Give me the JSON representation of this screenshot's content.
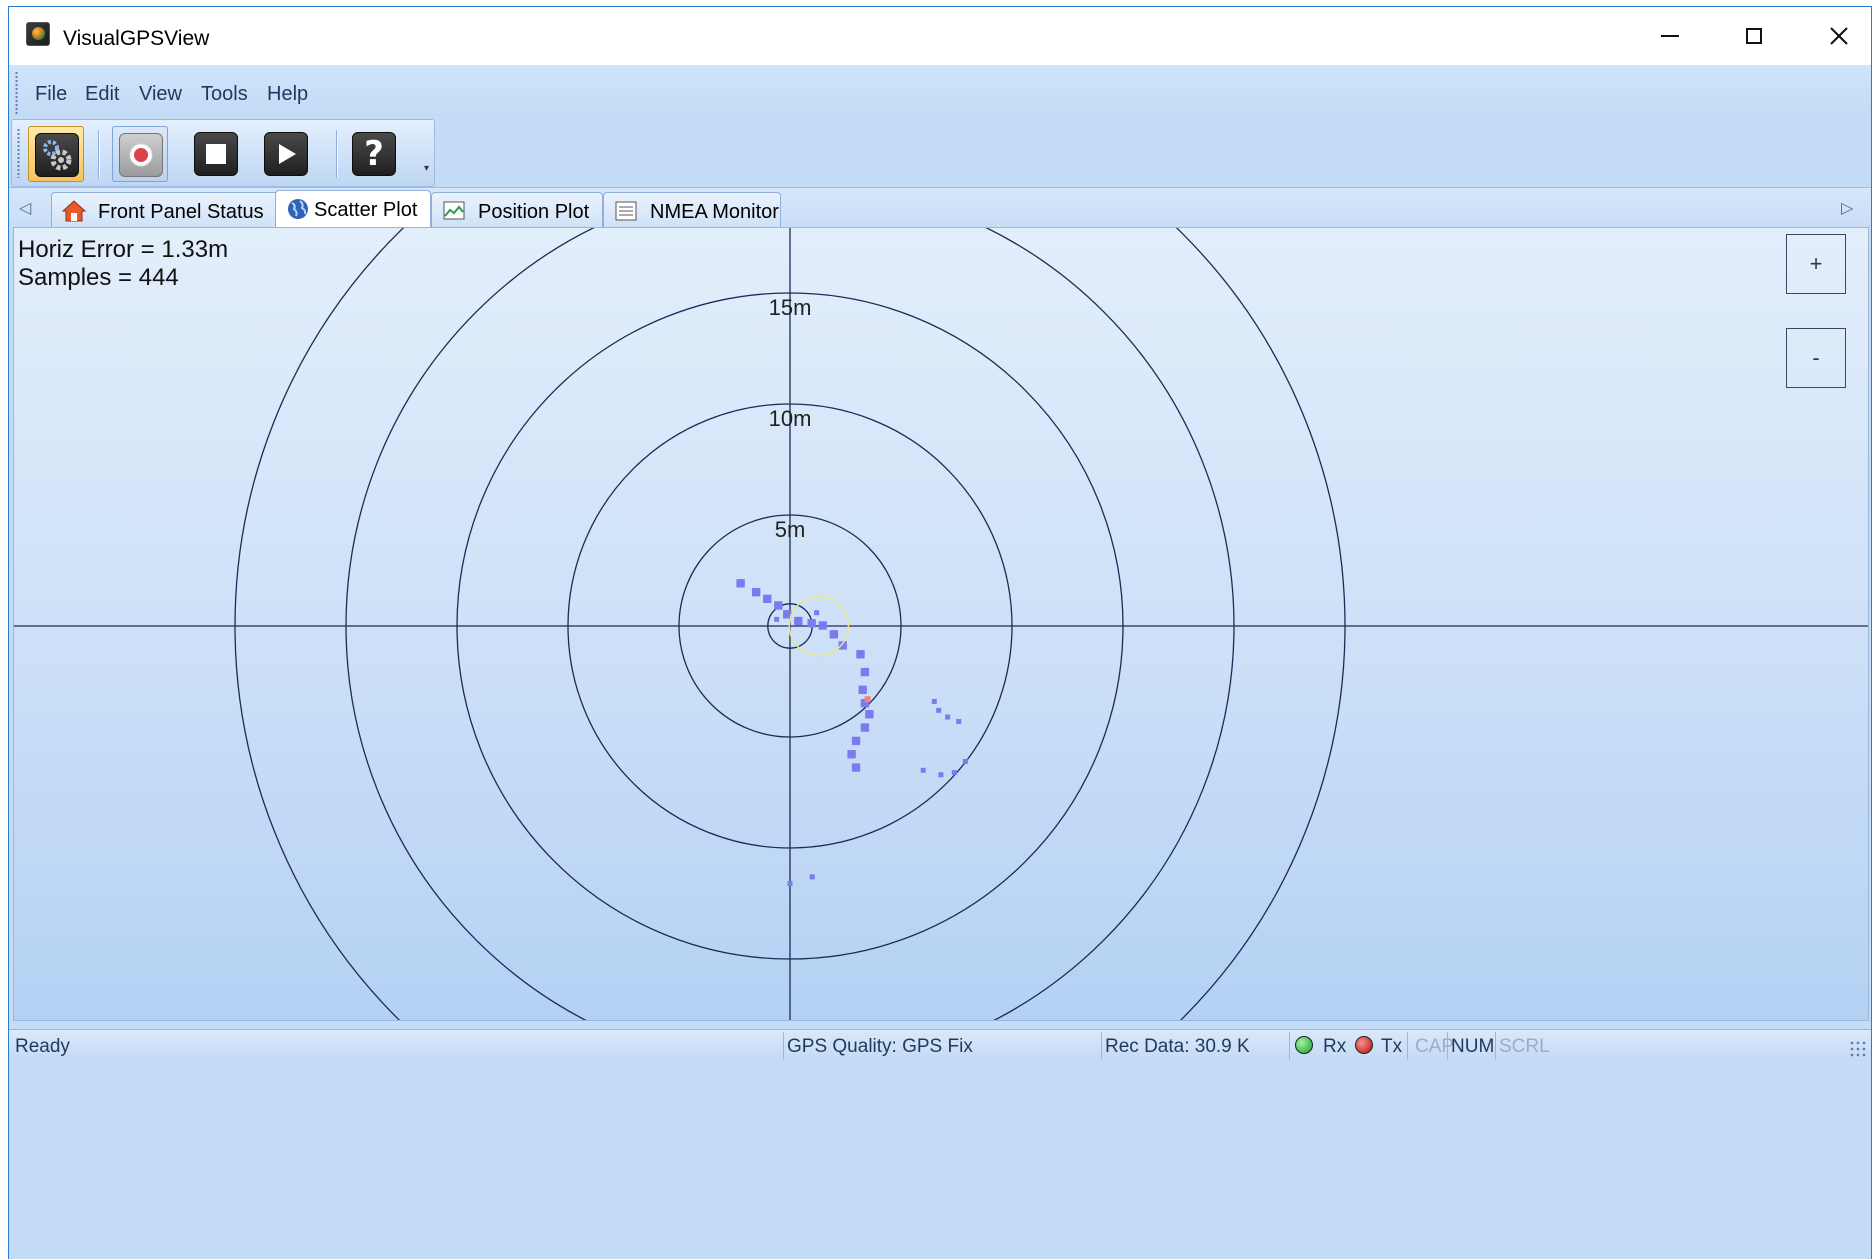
{
  "window": {
    "title": "VisualGPSView",
    "icon": "app-globe-icon",
    "controls": [
      "minimize-icon",
      "maximize-icon",
      "close-icon"
    ]
  },
  "menu": {
    "items": [
      "File",
      "Edit",
      "View",
      "Tools",
      "Help"
    ]
  },
  "toolbar": {
    "buttons": [
      {
        "name": "settings",
        "icon": "gear-icon",
        "state": "pressed"
      },
      {
        "name": "record",
        "icon": "record-icon",
        "state": "pressed"
      },
      {
        "name": "stop",
        "icon": "stop-icon"
      },
      {
        "name": "play",
        "icon": "play-icon"
      },
      {
        "name": "help",
        "icon": "question-icon",
        "glyph": "?"
      }
    ]
  },
  "tabs": [
    {
      "label": "Front Panel Status",
      "icon": "home-icon",
      "active": false
    },
    {
      "label": "Scatter Plot",
      "icon": "globe-icon",
      "active": true
    },
    {
      "label": "Position Plot",
      "icon": "image-icon",
      "active": false
    },
    {
      "label": "NMEA Monitor",
      "icon": "document-icon",
      "active": false
    }
  ],
  "scatter": {
    "horiz_error_text": "Horiz Error = 1.33m",
    "samples_text": "Samples = 444",
    "horiz_error_m": 1.33,
    "samples": 444,
    "ring_labels": [
      "5m",
      "10m",
      "15m"
    ],
    "rings_m": [
      1,
      5,
      10,
      15,
      20,
      25
    ],
    "zoom_in_label": "+",
    "zoom_out_label": "-",
    "point_color": "#7b7bef",
    "highlight_color": "#f08080",
    "error_circle_color": "#e8e88a",
    "grid_color": "#1e2a56"
  },
  "status": {
    "ready": "Ready",
    "gps_quality": "GPS Quality: GPS Fix",
    "rec_data": "Rec Data: 30.9 K",
    "rx_label": "Rx",
    "tx_label": "Tx",
    "cap": "CAP",
    "num": "NUM",
    "scrl": "SCRL",
    "rx_color": "#1a9a2a",
    "tx_color": "#b01010"
  }
}
